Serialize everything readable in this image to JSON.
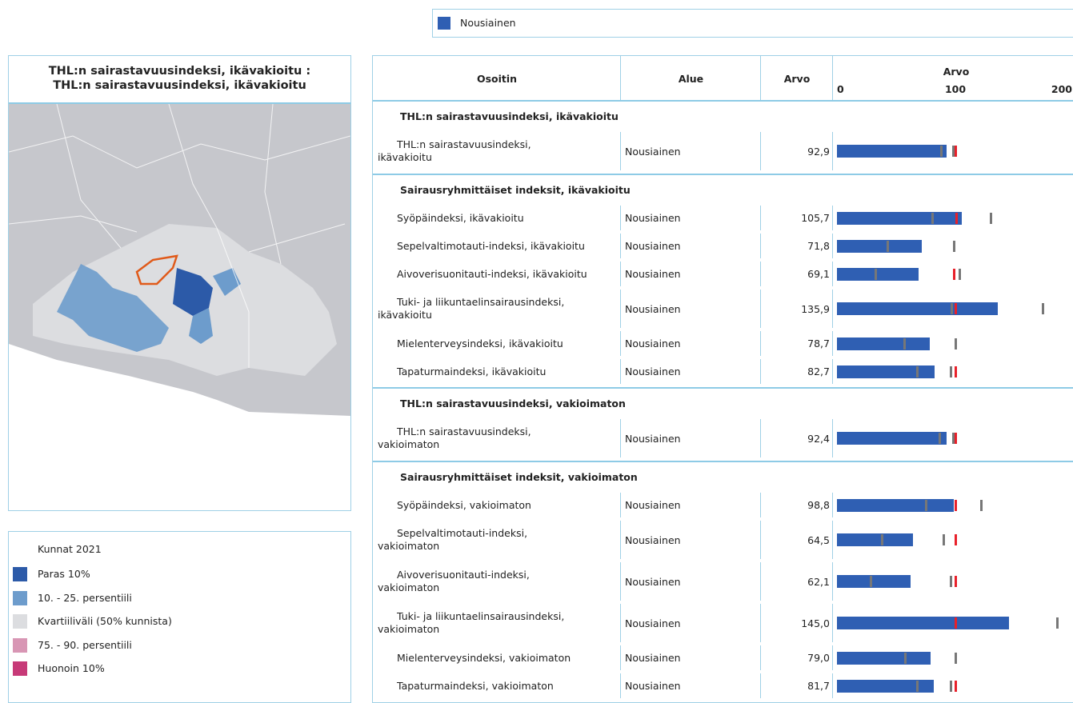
{
  "top_legend": {
    "label": "Nousiainen",
    "color": "#2f5fb3"
  },
  "map_panel": {
    "title_lines": [
      "THL:n sairastavuusindeksi, ikävakioitu :",
      "THL:n sairastavuusindeksi, ikävakioitu"
    ]
  },
  "map_legend": {
    "title": "Kunnat 2021",
    "items": [
      {
        "label": "Paras 10%",
        "color": "#2c5aa8"
      },
      {
        "label": "10. - 25. persentiili",
        "color": "#6d9ccc"
      },
      {
        "label": "Kvartiiliväli (50% kunnista)",
        "color": "#dcdde0"
      },
      {
        "label": "75. - 90. persentiili",
        "color": "#d896b4"
      },
      {
        "label": "Huonoin 10%",
        "color": "#c73a78"
      }
    ]
  },
  "table": {
    "headers": [
      "Osoitin",
      "Alue",
      "Arvo",
      "Arvo"
    ],
    "axis": {
      "lim": [
        0,
        200
      ],
      "ticks": [
        0,
        100,
        200
      ]
    },
    "bar_color": "#2f5fb3",
    "sections": [
      {
        "title": "THL:n sairastavuusindeksi, ikävakioitu",
        "rows": [
          {
            "label": [
              "THL:n sairastavuusindeksi,",
              "ikävakioitu"
            ],
            "area": "Nousiainen",
            "value": 92.9,
            "value_label": "92,9",
            "markers": [
              {
                "value": 88,
                "color": "#777"
              },
              {
                "value": 98,
                "color": "#777"
              },
              {
                "value": 100,
                "color": "#e8202a"
              }
            ]
          }
        ]
      },
      {
        "title": "Sairausryhmittäiset indeksit, ikävakioitu",
        "rows": [
          {
            "label": [
              "Syöpäindeksi, ikävakioitu"
            ],
            "area": "Nousiainen",
            "value": 105.7,
            "value_label": "105,7",
            "markers": [
              {
                "value": 81,
                "color": "#777"
              },
              {
                "value": 130,
                "color": "#777"
              },
              {
                "value": 101,
                "color": "#e8202a"
              }
            ]
          },
          {
            "label": [
              "Sepelvaltimotauti-indeksi, ikävakioitu"
            ],
            "area": "Nousiainen",
            "value": 71.8,
            "value_label": "71,8",
            "markers": [
              {
                "value": 43,
                "color": "#777"
              },
              {
                "value": 99,
                "color": "#777"
              }
            ]
          },
          {
            "label": [
              "Aivoverisuonitauti-indeksi, ikävakioitu"
            ],
            "area": "Nousiainen",
            "value": 69.1,
            "value_label": "69,1",
            "markers": [
              {
                "value": 33,
                "color": "#777"
              },
              {
                "value": 104,
                "color": "#777"
              },
              {
                "value": 99,
                "color": "#e8202a"
              }
            ]
          },
          {
            "label": [
              "Tuki- ja liikuntaelinsairausindeksi,",
              "ikävakioitu"
            ],
            "area": "Nousiainen",
            "value": 135.9,
            "value_label": "135,9",
            "markers": [
              {
                "value": 97,
                "color": "#777"
              },
              {
                "value": 174,
                "color": "#777"
              },
              {
                "value": 100,
                "color": "#e8202a"
              }
            ]
          },
          {
            "label": [
              "Mielenterveysindeksi, ikävakioitu"
            ],
            "area": "Nousiainen",
            "value": 78.7,
            "value_label": "78,7",
            "markers": [
              {
                "value": 57,
                "color": "#777"
              },
              {
                "value": 100,
                "color": "#777"
              }
            ]
          },
          {
            "label": [
              "Tapaturmaindeksi, ikävakioitu"
            ],
            "area": "Nousiainen",
            "value": 82.7,
            "value_label": "82,7",
            "markers": [
              {
                "value": 68,
                "color": "#777"
              },
              {
                "value": 96,
                "color": "#777"
              },
              {
                "value": 100,
                "color": "#e8202a"
              }
            ]
          }
        ]
      },
      {
        "title": "THL:n sairastavuusindeksi, vakioimaton",
        "rows": [
          {
            "label": [
              "THL:n sairastavuusindeksi,",
              "vakioimaton"
            ],
            "area": "Nousiainen",
            "value": 92.4,
            "value_label": "92,4",
            "markers": [
              {
                "value": 87,
                "color": "#777"
              },
              {
                "value": 98,
                "color": "#777"
              },
              {
                "value": 100,
                "color": "#e8202a"
              }
            ]
          }
        ]
      },
      {
        "title": "Sairausryhmittäiset indeksit, vakioimaton",
        "rows": [
          {
            "label": [
              "Syöpäindeksi, vakioimaton"
            ],
            "area": "Nousiainen",
            "value": 98.8,
            "value_label": "98,8",
            "markers": [
              {
                "value": 75,
                "color": "#777"
              },
              {
                "value": 122,
                "color": "#777"
              },
              {
                "value": 100,
                "color": "#e8202a"
              }
            ]
          },
          {
            "label": [
              "Sepelvaltimotauti-indeksi,",
              "vakioimaton"
            ],
            "area": "Nousiainen",
            "value": 64.5,
            "value_label": "64,5",
            "markers": [
              {
                "value": 38,
                "color": "#777"
              },
              {
                "value": 90,
                "color": "#777"
              },
              {
                "value": 100,
                "color": "#e8202a"
              }
            ]
          },
          {
            "label": [
              "Aivoverisuonitauti-indeksi,",
              "vakioimaton"
            ],
            "area": "Nousiainen",
            "value": 62.1,
            "value_label": "62,1",
            "markers": [
              {
                "value": 29,
                "color": "#777"
              },
              {
                "value": 96,
                "color": "#777"
              },
              {
                "value": 100,
                "color": "#e8202a"
              }
            ]
          },
          {
            "label": [
              "Tuki- ja liikuntaelinsairausindeksi,",
              "vakioimaton"
            ],
            "area": "Nousiainen",
            "value": 145.0,
            "value_label": "145,0",
            "markers": [
              {
                "value": 186,
                "color": "#777"
              },
              {
                "value": 100,
                "color": "#e8202a"
              }
            ]
          },
          {
            "label": [
              "Mielenterveysindeksi, vakioimaton"
            ],
            "area": "Nousiainen",
            "value": 79.0,
            "value_label": "79,0",
            "markers": [
              {
                "value": 58,
                "color": "#777"
              },
              {
                "value": 100,
                "color": "#777"
              }
            ]
          },
          {
            "label": [
              "Tapaturmaindeksi, vakioimaton"
            ],
            "area": "Nousiainen",
            "value": 81.7,
            "value_label": "81,7",
            "markers": [
              {
                "value": 68,
                "color": "#777"
              },
              {
                "value": 96,
                "color": "#777"
              },
              {
                "value": 100,
                "color": "#e8202a"
              }
            ]
          }
        ]
      }
    ]
  }
}
